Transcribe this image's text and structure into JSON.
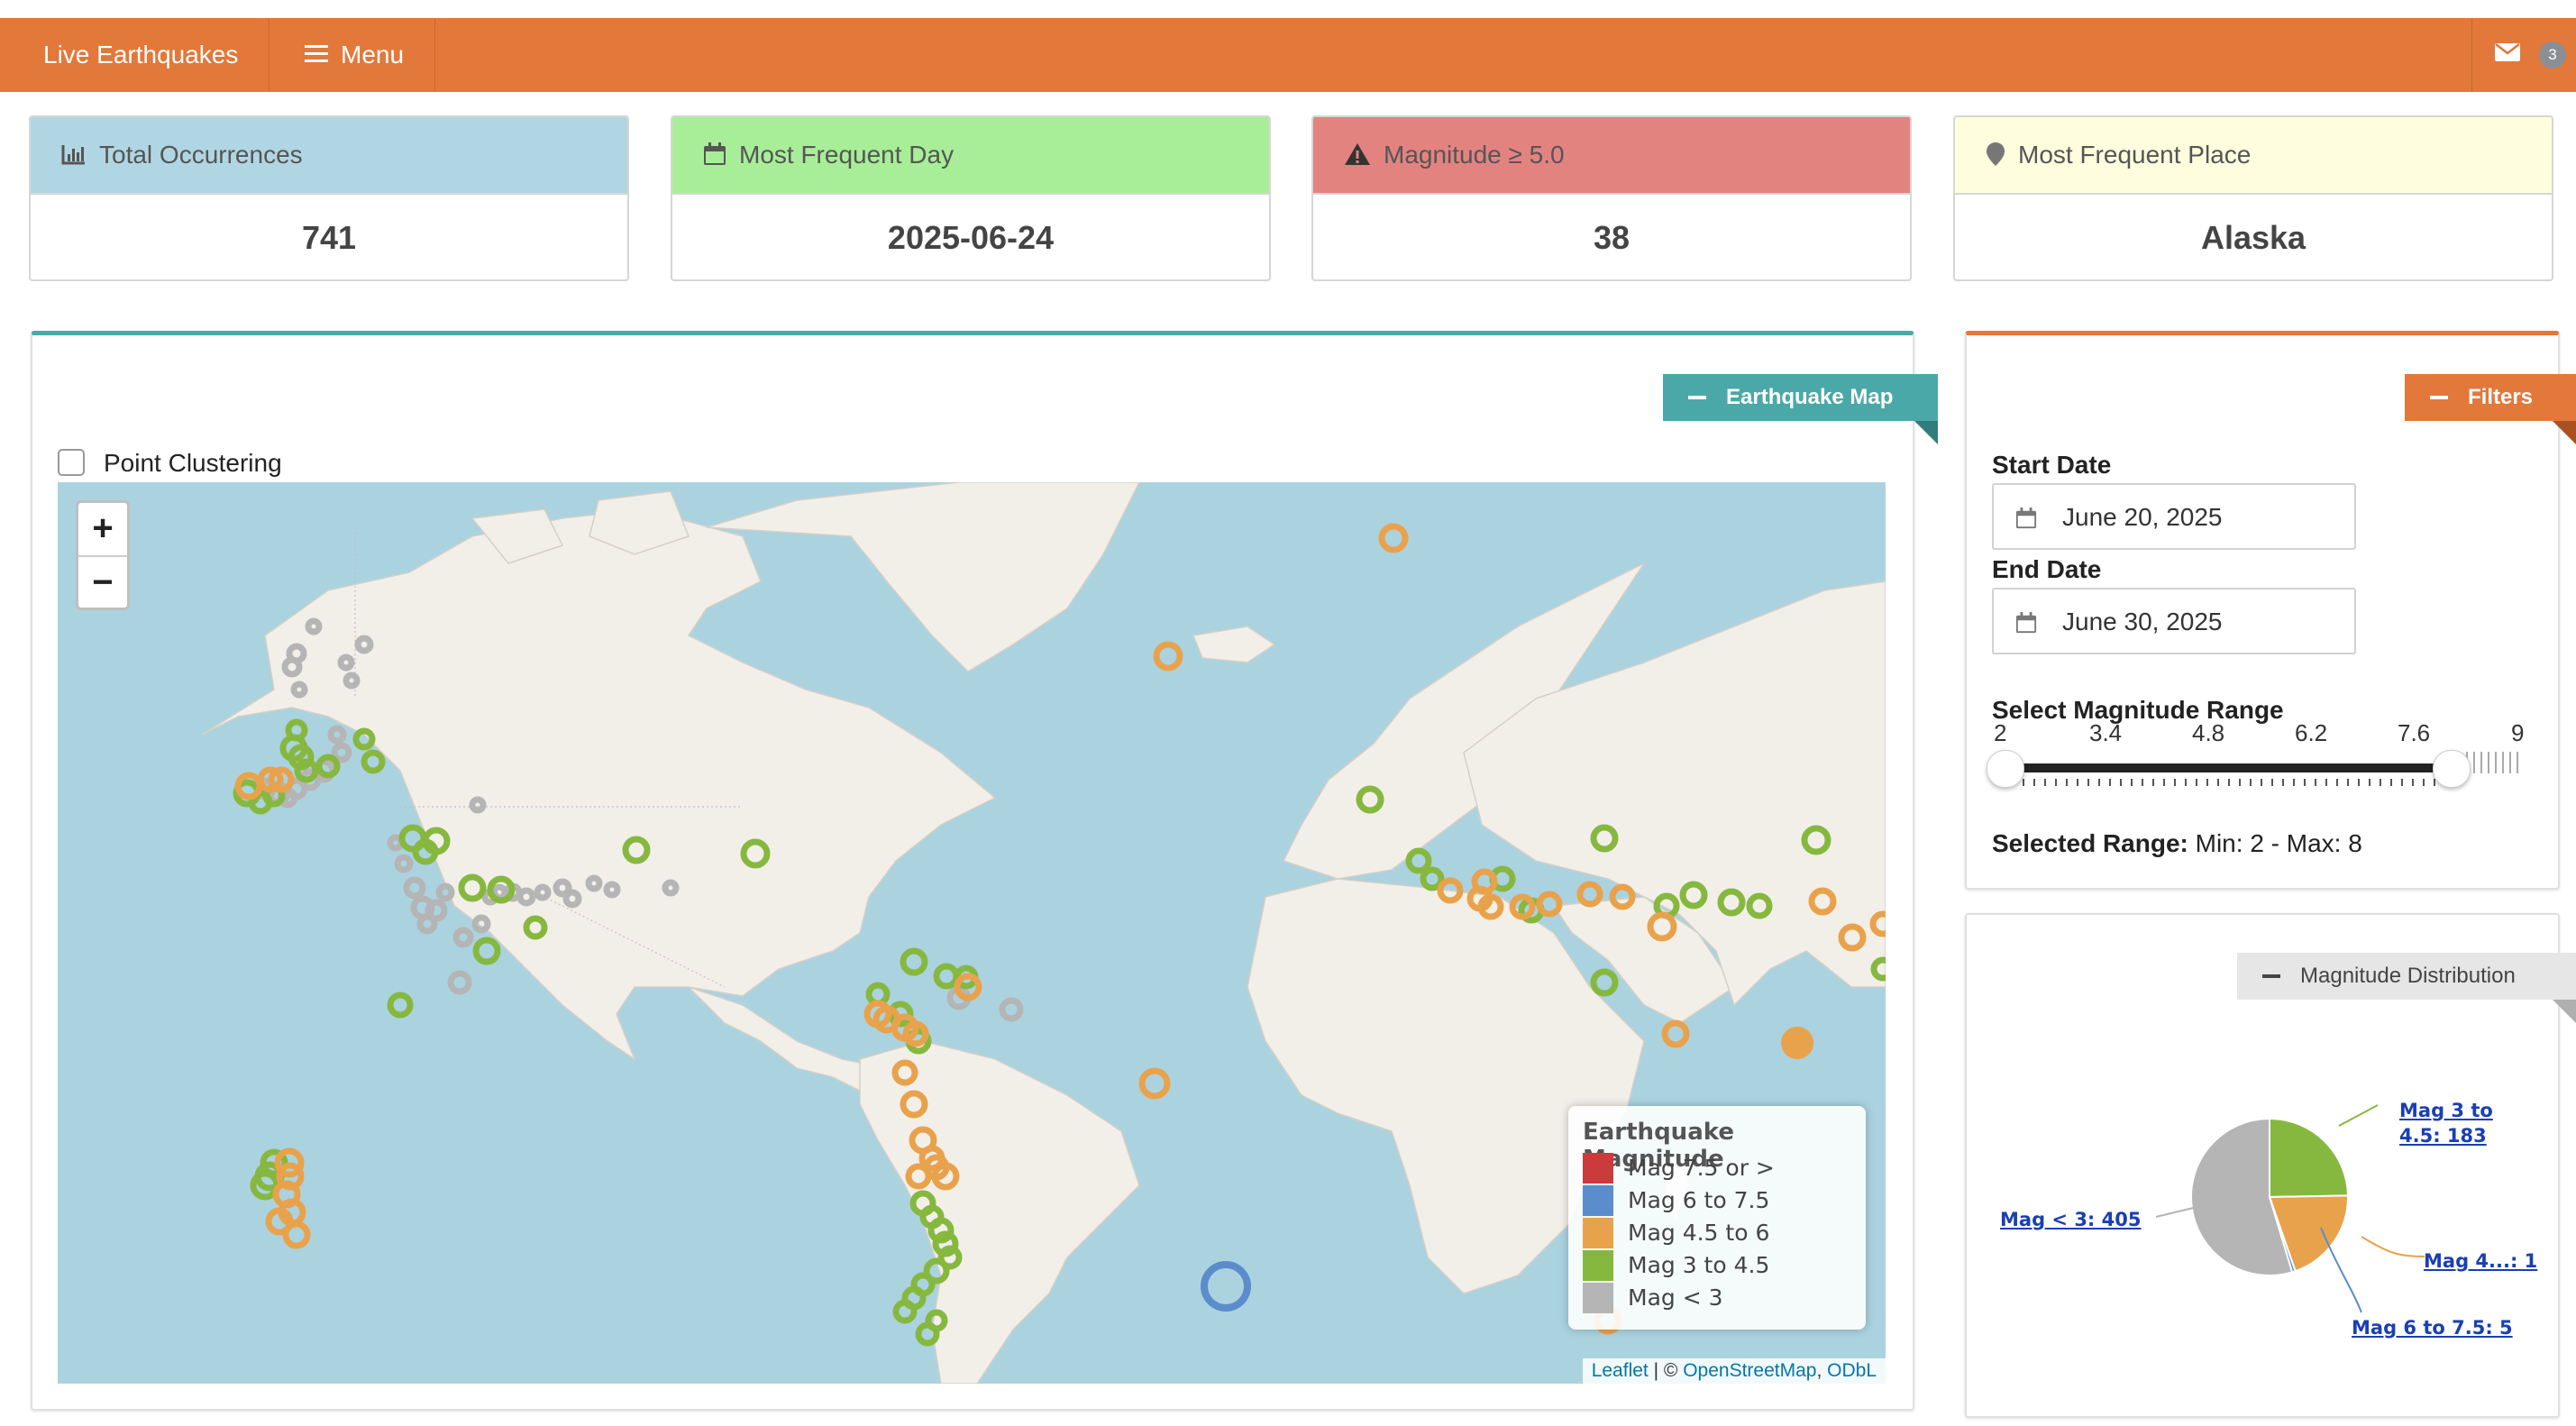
{
  "navbar": {
    "title": "Live Earthquakes",
    "menu_label": "Menu",
    "notifications_count": "3",
    "color": "#e2783a"
  },
  "kpis": [
    {
      "label": "Total Occurrences",
      "value": "741",
      "icon": "bar-chart-icon",
      "color": "#b1d6e3"
    },
    {
      "label": "Most Frequent Day",
      "value": "2025-06-24",
      "icon": "calendar-icon",
      "color": "#a8ee98"
    },
    {
      "label": "Magnitude ≥ 5.0",
      "value": "38",
      "icon": "warning-icon",
      "color": "#e38380"
    },
    {
      "label": "Most Frequent Place",
      "value": "Alaska",
      "icon": "map-marker-icon",
      "color": "#fefede"
    }
  ],
  "map_box": {
    "tab_label": "Earthquake Map",
    "color": "#4aa9a8",
    "clustering_label": "Point Clustering",
    "clustering_checked": false,
    "zoom_in": "+",
    "zoom_out": "−",
    "legend": {
      "title": "Earthquake Magnitude",
      "items": [
        {
          "label": "Mag 7.5 or >",
          "color": "#cc3b3b"
        },
        {
          "label": "Mag 6 to 7.5",
          "color": "#5b8ccb"
        },
        {
          "label": "Mag 4.5 to 6",
          "color": "#e9a24c"
        },
        {
          "label": "Mag 3 to 4.5",
          "color": "#86b83f"
        },
        {
          "label": "Mag < 3",
          "color": "#b5b5b5"
        }
      ]
    },
    "attribution": {
      "leaflet": "Leaflet",
      "sep": " | © ",
      "osm": "OpenStreetMap",
      "comma": ", ",
      "odbl": "ODbL"
    }
  },
  "filters": {
    "tab_label": "Filters",
    "color": "#e2783a",
    "start_label": "Start Date",
    "start_value": "June 20, 2025",
    "end_label": "End Date",
    "end_value": "June 30, 2025",
    "range_label": "Select Magnitude Range",
    "ticks": [
      "2",
      "3.4",
      "4.8",
      "6.2",
      "7.6",
      "9"
    ],
    "range_min": 2,
    "range_max": 8,
    "scale_min": 2,
    "scale_max": 9,
    "selected_prefix": "Selected Range:",
    "selected_value": " Min: 2 - Max: 8"
  },
  "distribution": {
    "tab_label": "Magnitude Distribution",
    "color": "#e6e6e6",
    "labels": {
      "mag3to45": [
        "Mag 3 to",
        "4.5: 183"
      ],
      "mag45to6": "Mag 4...: 1",
      "mag6to75": "Mag 6 to 7.5: 5",
      "maglt3": "Mag < 3: 405"
    }
  },
  "chart_data": {
    "type": "pie",
    "title": "",
    "slices": [
      {
        "label": "Mag 3 to 4.5",
        "value": 183,
        "color": "#86b83f"
      },
      {
        "label": "Mag 4.5 to 6",
        "value": 148,
        "color": "#e9a24c"
      },
      {
        "label": "Mag 6 to 7.5",
        "value": 5,
        "color": "#5b8ccb"
      },
      {
        "label": "Mag < 3",
        "value": 405,
        "color": "#b5b5b5"
      }
    ]
  }
}
